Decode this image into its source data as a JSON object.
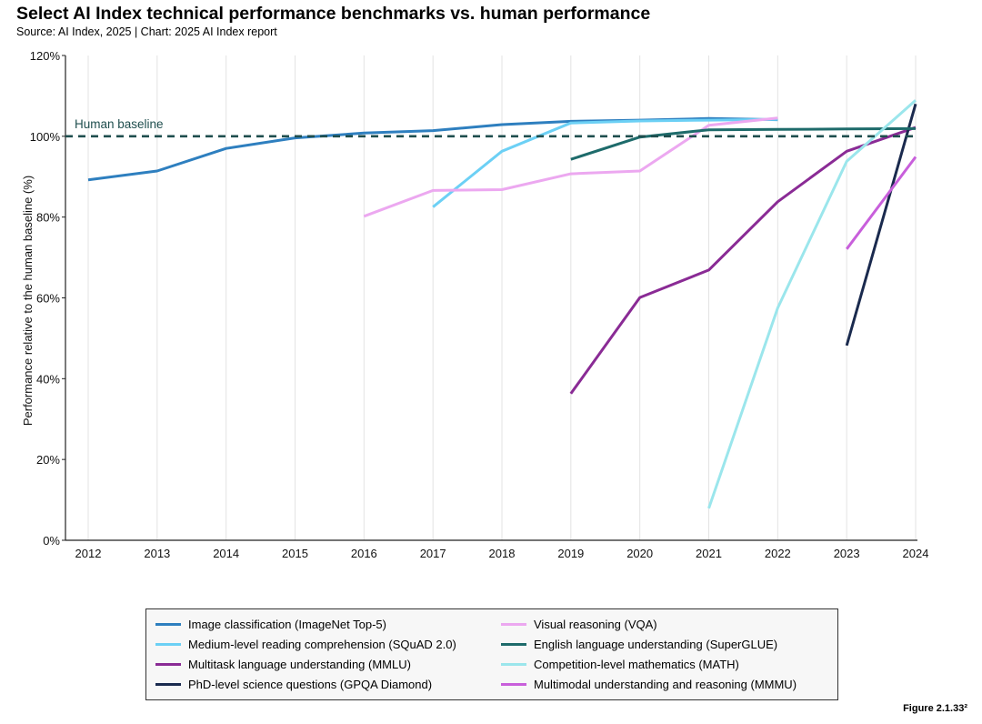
{
  "header": {
    "title": "Select AI Index technical performance benchmarks vs. human performance",
    "subtitle": "Source: AI Index, 2025 | Chart: 2025 AI Index report"
  },
  "figure_label": "Figure 2.1.33²",
  "chart_data": {
    "type": "line",
    "title": "Select AI Index technical performance benchmarks vs. human performance",
    "xlabel": "",
    "ylabel": "Performance relative to the human baseline (%)",
    "xlim": [
      2012,
      2024
    ],
    "ylim": [
      0,
      120
    ],
    "x_ticks": [
      "2012",
      "2013",
      "2014",
      "2015",
      "2016",
      "2017",
      "2018",
      "2019",
      "2020",
      "2021",
      "2022",
      "2023",
      "2024"
    ],
    "y_ticks": [
      "0%",
      "20%",
      "40%",
      "60%",
      "80%",
      "100%",
      "120%"
    ],
    "grid": "vertical",
    "legend_position": "bottom",
    "baseline": {
      "label": "Human baseline",
      "value": 100,
      "color": "#1f4e4e"
    },
    "series": [
      {
        "name": "Image classification (ImageNet Top-5)",
        "color": "#2e7fbf",
        "points": [
          [
            2012,
            89.2
          ],
          [
            2013,
            91.4
          ],
          [
            2014,
            97.0
          ],
          [
            2015,
            99.6
          ],
          [
            2016,
            100.8
          ],
          [
            2017,
            101.4
          ],
          [
            2018,
            102.9
          ],
          [
            2019,
            103.7
          ],
          [
            2020,
            104.0
          ],
          [
            2021,
            104.4
          ],
          [
            2022,
            104.1
          ]
        ]
      },
      {
        "name": "Medium-level reading comprehension (SQuAD 2.0)",
        "color": "#6cd0f5",
        "points": [
          [
            2017,
            82.5
          ],
          [
            2018,
            96.3
          ],
          [
            2019,
            103.3
          ],
          [
            2020,
            103.8
          ],
          [
            2021,
            104.0
          ],
          [
            2022,
            104.2
          ]
        ]
      },
      {
        "name": "Multitask language understanding (MMLU)",
        "color": "#8a2b95",
        "points": [
          [
            2019,
            36.3
          ],
          [
            2020,
            60.1
          ],
          [
            2021,
            66.9
          ],
          [
            2022,
            83.8
          ],
          [
            2023,
            96.3
          ],
          [
            2024,
            102.2
          ]
        ]
      },
      {
        "name": "PhD-level science questions (GPQA Diamond)",
        "color": "#1a2a4e",
        "points": [
          [
            2023,
            48.2
          ],
          [
            2024,
            108.0
          ]
        ]
      },
      {
        "name": "Visual reasoning (VQA)",
        "color": "#eca8f0",
        "points": [
          [
            2016,
            80.2
          ],
          [
            2017,
            86.6
          ],
          [
            2018,
            86.8
          ],
          [
            2019,
            90.7
          ],
          [
            2020,
            91.4
          ],
          [
            2021,
            102.7
          ],
          [
            2022,
            104.5
          ]
        ]
      },
      {
        "name": "English language understanding (SuperGLUE)",
        "color": "#1e6b6b",
        "points": [
          [
            2019,
            94.3
          ],
          [
            2020,
            99.8
          ],
          [
            2021,
            101.6
          ],
          [
            2022,
            101.7
          ],
          [
            2023,
            101.8
          ],
          [
            2024,
            101.9
          ]
        ]
      },
      {
        "name": "Competition-level mathematics (MATH)",
        "color": "#9be6ec",
        "points": [
          [
            2021,
            7.9
          ],
          [
            2022,
            57.5
          ],
          [
            2023,
            93.8
          ],
          [
            2024,
            108.9
          ]
        ]
      },
      {
        "name": "Multimodal understanding and reasoning (MMMU)",
        "color": "#c85fdb",
        "points": [
          [
            2023,
            72.1
          ],
          [
            2024,
            94.9
          ]
        ]
      }
    ]
  }
}
